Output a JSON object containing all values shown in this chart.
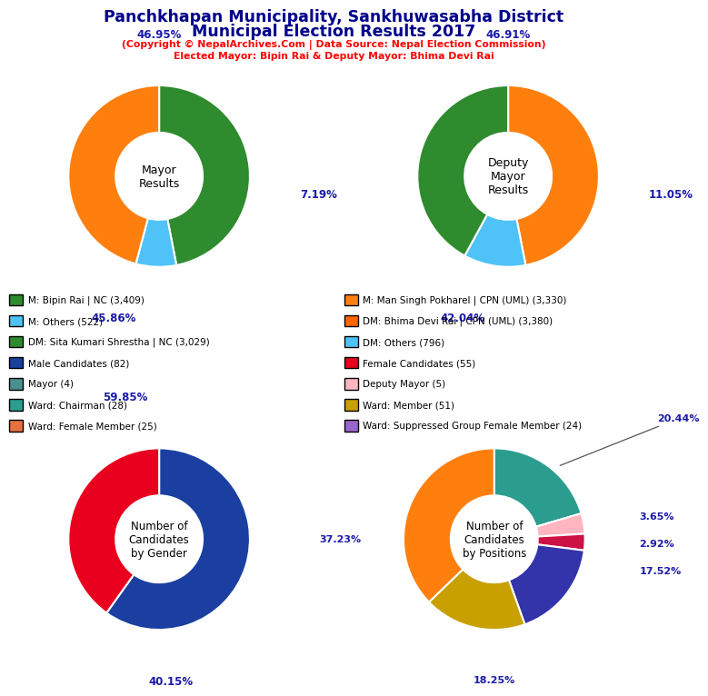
{
  "title_line1": "Panchkhapan Municipality, Sankhuwasabha District",
  "title_line2": "Municipal Election Results 2017",
  "subtitle1": "(Copyright © NepalArchives.Com | Data Source: Nepal Election Commission)",
  "subtitle2": "Elected Mayor: Bipin Rai & Deputy Mayor: Bhima Devi Rai",
  "mayor_values": [
    46.95,
    7.19,
    45.86
  ],
  "mayor_colors": [
    "#2e8b2e",
    "#4fc3f7",
    "#ff7f0e"
  ],
  "deputy_values": [
    46.91,
    11.05,
    42.04
  ],
  "deputy_colors": [
    "#ff7f0e",
    "#4fc3f7",
    "#2e8b2e"
  ],
  "gender_values": [
    59.85,
    40.15
  ],
  "gender_colors": [
    "#1a3fa0",
    "#e8001e"
  ],
  "position_values": [
    20.44,
    3.65,
    2.92,
    17.52,
    18.25,
    37.23
  ],
  "position_colors": [
    "#2a9d8f",
    "#ffb6c1",
    "#cc1144",
    "#3333aa",
    "#c8a000",
    "#ff7f0e"
  ],
  "legend_items_left": [
    {
      "label": "M: Bipin Rai | NC (3,409)",
      "color": "#2e8b2e"
    },
    {
      "label": "M: Others (522)",
      "color": "#4fc3f7"
    },
    {
      "label": "DM: Sita Kumari Shrestha | NC (3,029)",
      "color": "#2e8b2e"
    },
    {
      "label": "Male Candidates (82)",
      "color": "#1a3fa0"
    },
    {
      "label": "Mayor (4)",
      "color": "#4a9090"
    },
    {
      "label": "Ward: Chairman (28)",
      "color": "#2a9d8f"
    },
    {
      "label": "Ward: Female Member (25)",
      "color": "#e87040"
    }
  ],
  "legend_items_right": [
    {
      "label": "M: Man Singh Pokharel | CPN (UML) (3,330)",
      "color": "#ff7f0e"
    },
    {
      "label": "DM: Bhima Devi Rai | CPN (UML) (3,380)",
      "color": "#ff6600"
    },
    {
      "label": "DM: Others (796)",
      "color": "#4fc3f7"
    },
    {
      "label": "Female Candidates (55)",
      "color": "#e8001e"
    },
    {
      "label": "Deputy Mayor (5)",
      "color": "#ffb6c1"
    },
    {
      "label": "Ward: Member (51)",
      "color": "#c8a000"
    },
    {
      "label": "Ward: Suppressed Group Female Member (24)",
      "color": "#9966cc"
    }
  ]
}
